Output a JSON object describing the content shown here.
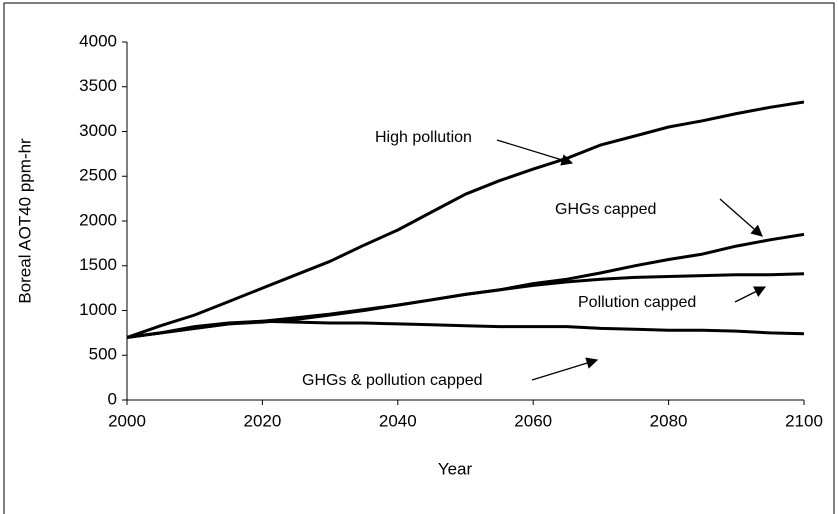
{
  "chart_data": {
    "type": "line",
    "xlabel": "Year",
    "ylabel": "Boreal AOT40 ppm-hr",
    "x": [
      2000,
      2005,
      2010,
      2015,
      2020,
      2025,
      2030,
      2035,
      2040,
      2045,
      2050,
      2055,
      2060,
      2065,
      2070,
      2075,
      2080,
      2085,
      2090,
      2095,
      2100
    ],
    "series": [
      {
        "name": "High pollution",
        "color": "#000000",
        "values": [
          700,
          830,
          950,
          1100,
          1250,
          1400,
          1550,
          1730,
          1900,
          2100,
          2300,
          2450,
          2580,
          2700,
          2850,
          2950,
          3050,
          3120,
          3200,
          3270,
          3330
        ]
      },
      {
        "name": "GHGs capped",
        "color": "#000000",
        "values": [
          700,
          750,
          800,
          850,
          880,
          920,
          960,
          1010,
          1060,
          1120,
          1180,
          1230,
          1300,
          1350,
          1420,
          1500,
          1570,
          1630,
          1720,
          1790,
          1850
        ]
      },
      {
        "name": "Pollution capped",
        "color": "#000000",
        "values": [
          700,
          750,
          800,
          850,
          870,
          900,
          950,
          1000,
          1060,
          1120,
          1180,
          1230,
          1280,
          1320,
          1350,
          1370,
          1380,
          1390,
          1400,
          1400,
          1410
        ]
      },
      {
        "name": "GHGs & pollution capped",
        "color": "#000000",
        "values": [
          700,
          750,
          820,
          860,
          880,
          870,
          860,
          860,
          850,
          840,
          830,
          820,
          820,
          820,
          800,
          790,
          780,
          780,
          770,
          750,
          740
        ]
      }
    ],
    "xlim": [
      2000,
      2100
    ],
    "xticks": [
      2000,
      2020,
      2040,
      2060,
      2080,
      2100
    ],
    "ylim": [
      0,
      4000
    ],
    "yticks": [
      0,
      500,
      1000,
      1500,
      2000,
      2500,
      3000,
      3500,
      4000
    ],
    "grid": false
  }
}
